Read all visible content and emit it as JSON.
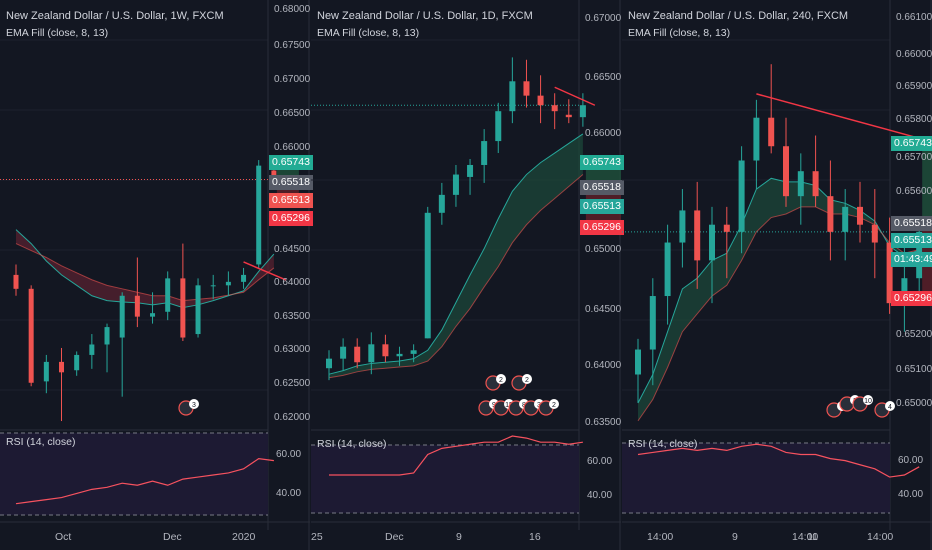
{
  "colors": {
    "bg": "#131722",
    "up": "#26a69a",
    "down": "#ef5350",
    "grid": "#1e222d",
    "text": "#b2b5be",
    "rsiBg": "#1d1a33",
    "trend": "#f23645"
  },
  "panels": [
    {
      "title": "New Zealand Dollar / U.S. Dollar, 1W, FXCM",
      "indicator": "EMA Fill (close, 8, 13)",
      "rsi_label": "RSI (14, close)",
      "price_labels": [
        "0.68000",
        "0.67500",
        "0.67000",
        "0.66500",
        "0.66000",
        "0.65500",
        "0.65000",
        "0.64500",
        "0.64000",
        "0.63500",
        "0.63000",
        "0.62500",
        "0.62000"
      ],
      "price_tags": [
        {
          "value": "0.65743",
          "color": "#22ab94"
        },
        {
          "value": "0.65518",
          "color": "#555a66"
        },
        {
          "value": "0.65513",
          "color": "#ef5350"
        },
        {
          "value": "0.65296",
          "color": "#f23645"
        }
      ],
      "rsi_levels": [
        "60.00",
        "40.00"
      ],
      "x_labels": [
        "Oct",
        "Dec",
        "2020"
      ],
      "badge": "3"
    },
    {
      "title": "New Zealand Dollar / U.S. Dollar, 1D, FXCM",
      "indicator": "EMA Fill (close, 8, 13)",
      "rsi_label": "RSI (14, close)",
      "price_labels": [
        "0.67000",
        "0.66500",
        "0.66000",
        "0.65500",
        "0.65000",
        "0.64500",
        "0.64000",
        "0.63500"
      ],
      "price_tags": [
        {
          "value": "0.65743",
          "color": "#22ab94"
        },
        {
          "value": "0.65518",
          "color": "#555a66"
        },
        {
          "value": "0.65513",
          "color": "#26a69a"
        },
        {
          "value": "0.65296",
          "color": "#f23645"
        }
      ],
      "rsi_levels": [
        "60.00",
        "40.00"
      ],
      "x_labels": [
        "25",
        "Dec",
        "9",
        "16"
      ],
      "badges": [
        "2",
        "2",
        "9",
        "15",
        "8",
        "3",
        "2"
      ]
    },
    {
      "title": "New Zealand Dollar / U.S. Dollar, 240, FXCM",
      "indicator": "EMA Fill (close, 8, 13)",
      "rsi_label": "RSI (14, close)",
      "price_labels": [
        "0.66100",
        "0.66000",
        "0.65900",
        "0.65800",
        "0.65700",
        "0.65600",
        "0.65500",
        "0.65400",
        "0.65300",
        "0.65200",
        "0.65100",
        "0.65000"
      ],
      "price_tags": [
        {
          "value": "0.65743",
          "color": "#22ab94"
        },
        {
          "value": "0.65518",
          "color": "#555a66"
        },
        {
          "value": "0.65513",
          "color": "#26a69a"
        },
        {
          "value": "01:43:49",
          "color": "#26a69a"
        },
        {
          "value": "0.65296",
          "color": "#f23645"
        }
      ],
      "rsi_levels": [
        "60.00",
        "40.00"
      ],
      "x_labels": [
        "14:00",
        "9",
        "14:00",
        "11",
        "14:00"
      ],
      "badges": [
        "7",
        "2",
        "10",
        "4"
      ]
    }
  ],
  "chart_data": [
    {
      "type": "line",
      "title": "New Zealand Dollar / U.S. Dollar, 1W, FXCM",
      "candles": [
        {
          "o": 0.6415,
          "h": 0.643,
          "l": 0.6385,
          "c": 0.6395
        },
        {
          "o": 0.6395,
          "h": 0.64,
          "l": 0.6255,
          "c": 0.626
        },
        {
          "o": 0.6262,
          "h": 0.63,
          "l": 0.6245,
          "c": 0.629
        },
        {
          "o": 0.629,
          "h": 0.631,
          "l": 0.6205,
          "c": 0.6275
        },
        {
          "o": 0.6278,
          "h": 0.6305,
          "l": 0.627,
          "c": 0.63
        },
        {
          "o": 0.63,
          "h": 0.633,
          "l": 0.628,
          "c": 0.6315
        },
        {
          "o": 0.6315,
          "h": 0.6345,
          "l": 0.6275,
          "c": 0.634
        },
        {
          "o": 0.6325,
          "h": 0.639,
          "l": 0.624,
          "c": 0.6385
        },
        {
          "o": 0.6385,
          "h": 0.644,
          "l": 0.634,
          "c": 0.6355
        },
        {
          "o": 0.6355,
          "h": 0.639,
          "l": 0.6345,
          "c": 0.636
        },
        {
          "o": 0.6362,
          "h": 0.642,
          "l": 0.635,
          "c": 0.641
        },
        {
          "o": 0.641,
          "h": 0.646,
          "l": 0.632,
          "c": 0.6325
        },
        {
          "o": 0.633,
          "h": 0.641,
          "l": 0.6325,
          "c": 0.64
        },
        {
          "o": 0.64,
          "h": 0.6415,
          "l": 0.638,
          "c": 0.64
        },
        {
          "o": 0.64,
          "h": 0.642,
          "l": 0.6385,
          "c": 0.6405
        },
        {
          "o": 0.6405,
          "h": 0.6425,
          "l": 0.6395,
          "c": 0.6415
        },
        {
          "o": 0.643,
          "h": 0.658,
          "l": 0.6425,
          "c": 0.6572
        },
        {
          "o": 0.6565,
          "h": 0.6575,
          "l": 0.654,
          "c": 0.6552
        }
      ],
      "ema_fast": [
        0.648,
        0.646,
        0.6435,
        0.6415,
        0.64,
        0.6385,
        0.6378,
        0.6376,
        0.6375,
        0.6372,
        0.6375,
        0.6368,
        0.6372,
        0.6378,
        0.6385,
        0.6392,
        0.642,
        0.6445
      ],
      "ema_slow": [
        0.646,
        0.645,
        0.644,
        0.6428,
        0.6418,
        0.6408,
        0.64,
        0.6395,
        0.639,
        0.6385,
        0.6385,
        0.6378,
        0.638,
        0.6382,
        0.6386,
        0.639,
        0.6408,
        0.6425
      ],
      "rsi": [
        36,
        37,
        38,
        39,
        41,
        43,
        44,
        46,
        45,
        47,
        45,
        48,
        49,
        50,
        51,
        53,
        58,
        57
      ],
      "ylim": [
        0.6195,
        0.681
      ],
      "rsi_range": [
        30,
        70
      ]
    },
    {
      "type": "line",
      "title": "New Zealand Dollar / U.S. Dollar, 1D, FXCM",
      "candles": [
        {
          "o": 0.64,
          "h": 0.6415,
          "l": 0.639,
          "c": 0.6408
        },
        {
          "o": 0.6408,
          "h": 0.6425,
          "l": 0.6398,
          "c": 0.6418
        },
        {
          "o": 0.6418,
          "h": 0.6425,
          "l": 0.64,
          "c": 0.6405
        },
        {
          "o": 0.6405,
          "h": 0.643,
          "l": 0.6395,
          "c": 0.642
        },
        {
          "o": 0.642,
          "h": 0.6428,
          "l": 0.6405,
          "c": 0.641
        },
        {
          "o": 0.641,
          "h": 0.6418,
          "l": 0.6402,
          "c": 0.6412
        },
        {
          "o": 0.6412,
          "h": 0.642,
          "l": 0.6405,
          "c": 0.6415
        },
        {
          "o": 0.6425,
          "h": 0.6535,
          "l": 0.6425,
          "c": 0.653
        },
        {
          "o": 0.653,
          "h": 0.6555,
          "l": 0.652,
          "c": 0.6545
        },
        {
          "o": 0.6545,
          "h": 0.657,
          "l": 0.6535,
          "c": 0.6562
        },
        {
          "o": 0.656,
          "h": 0.6575,
          "l": 0.6545,
          "c": 0.657
        },
        {
          "o": 0.657,
          "h": 0.66,
          "l": 0.6555,
          "c": 0.659
        },
        {
          "o": 0.659,
          "h": 0.6622,
          "l": 0.658,
          "c": 0.6615
        },
        {
          "o": 0.6615,
          "h": 0.666,
          "l": 0.6605,
          "c": 0.664
        },
        {
          "o": 0.664,
          "h": 0.6658,
          "l": 0.6618,
          "c": 0.6628
        },
        {
          "o": 0.6628,
          "h": 0.6645,
          "l": 0.6605,
          "c": 0.662
        },
        {
          "o": 0.662,
          "h": 0.663,
          "l": 0.66,
          "c": 0.6615
        },
        {
          "o": 0.6612,
          "h": 0.6625,
          "l": 0.6605,
          "c": 0.661
        },
        {
          "o": 0.661,
          "h": 0.663,
          "l": 0.6602,
          "c": 0.662
        }
      ],
      "ema_fast": [
        0.6395,
        0.6398,
        0.6402,
        0.6404,
        0.6405,
        0.6406,
        0.6408,
        0.6415,
        0.6432,
        0.6455,
        0.6478,
        0.65,
        0.6525,
        0.6548,
        0.6562,
        0.6572,
        0.658,
        0.6588,
        0.6596
      ],
      "ema_slow": [
        0.6392,
        0.6394,
        0.6397,
        0.6399,
        0.64,
        0.6401,
        0.6402,
        0.6406,
        0.6418,
        0.6435,
        0.645,
        0.6468,
        0.6485,
        0.6505,
        0.652,
        0.6532,
        0.6542,
        0.6552,
        0.6562
      ],
      "rsi": [
        50,
        50,
        50,
        50,
        50,
        50,
        51,
        60,
        63,
        64,
        65,
        66,
        66,
        69,
        68,
        66,
        66,
        65,
        66
      ],
      "ylim": [
        0.635,
        0.6708
      ],
      "rsi_range": [
        30,
        70
      ]
    },
    {
      "type": "line",
      "title": "New Zealand Dollar / U.S. Dollar, 240, FXCM",
      "candles": [
        {
          "o": 0.6508,
          "h": 0.6518,
          "l": 0.65,
          "c": 0.6515
        },
        {
          "o": 0.6515,
          "h": 0.6535,
          "l": 0.6505,
          "c": 0.653
        },
        {
          "o": 0.653,
          "h": 0.655,
          "l": 0.6522,
          "c": 0.6545
        },
        {
          "o": 0.6545,
          "h": 0.656,
          "l": 0.6538,
          "c": 0.6554
        },
        {
          "o": 0.6554,
          "h": 0.6562,
          "l": 0.6532,
          "c": 0.654
        },
        {
          "o": 0.654,
          "h": 0.6555,
          "l": 0.6528,
          "c": 0.655
        },
        {
          "o": 0.655,
          "h": 0.6555,
          "l": 0.6535,
          "c": 0.6548
        },
        {
          "o": 0.6548,
          "h": 0.6572,
          "l": 0.6542,
          "c": 0.6568
        },
        {
          "o": 0.6568,
          "h": 0.6585,
          "l": 0.656,
          "c": 0.658
        },
        {
          "o": 0.658,
          "h": 0.6595,
          "l": 0.657,
          "c": 0.6572
        },
        {
          "o": 0.6572,
          "h": 0.658,
          "l": 0.6555,
          "c": 0.6558
        },
        {
          "o": 0.6558,
          "h": 0.657,
          "l": 0.655,
          "c": 0.6565
        },
        {
          "o": 0.6565,
          "h": 0.6575,
          "l": 0.6555,
          "c": 0.6558
        },
        {
          "o": 0.6558,
          "h": 0.6568,
          "l": 0.654,
          "c": 0.6548
        },
        {
          "o": 0.6548,
          "h": 0.656,
          "l": 0.654,
          "c": 0.6555
        },
        {
          "o": 0.6555,
          "h": 0.6562,
          "l": 0.6545,
          "c": 0.655
        },
        {
          "o": 0.655,
          "h": 0.656,
          "l": 0.6535,
          "c": 0.6545
        },
        {
          "o": 0.6545,
          "h": 0.6552,
          "l": 0.6525,
          "c": 0.6528
        },
        {
          "o": 0.6528,
          "h": 0.6545,
          "l": 0.652,
          "c": 0.6535
        },
        {
          "o": 0.6535,
          "h": 0.6552,
          "l": 0.6528,
          "c": 0.6548
        }
      ],
      "ema_fast": [
        0.65,
        0.6508,
        0.652,
        0.6532,
        0.6535,
        0.654,
        0.6542,
        0.655,
        0.656,
        0.6563,
        0.6562,
        0.6562,
        0.6561,
        0.6557,
        0.6556,
        0.6554,
        0.6551,
        0.6544,
        0.6541,
        0.6543
      ],
      "ema_slow": [
        0.6495,
        0.6501,
        0.651,
        0.652,
        0.6525,
        0.653,
        0.6533,
        0.654,
        0.6548,
        0.6552,
        0.6553,
        0.6555,
        0.6555,
        0.6553,
        0.6553,
        0.6552,
        0.655,
        0.6545,
        0.6542,
        0.6543
      ],
      "rsi": [
        60,
        61,
        62,
        63,
        62,
        63,
        62,
        64,
        65,
        64,
        61,
        60,
        60,
        58,
        57,
        55,
        53,
        49,
        50,
        54
      ],
      "ylim": [
        0.6493,
        0.6613
      ],
      "rsi_range": [
        30,
        70
      ]
    }
  ]
}
